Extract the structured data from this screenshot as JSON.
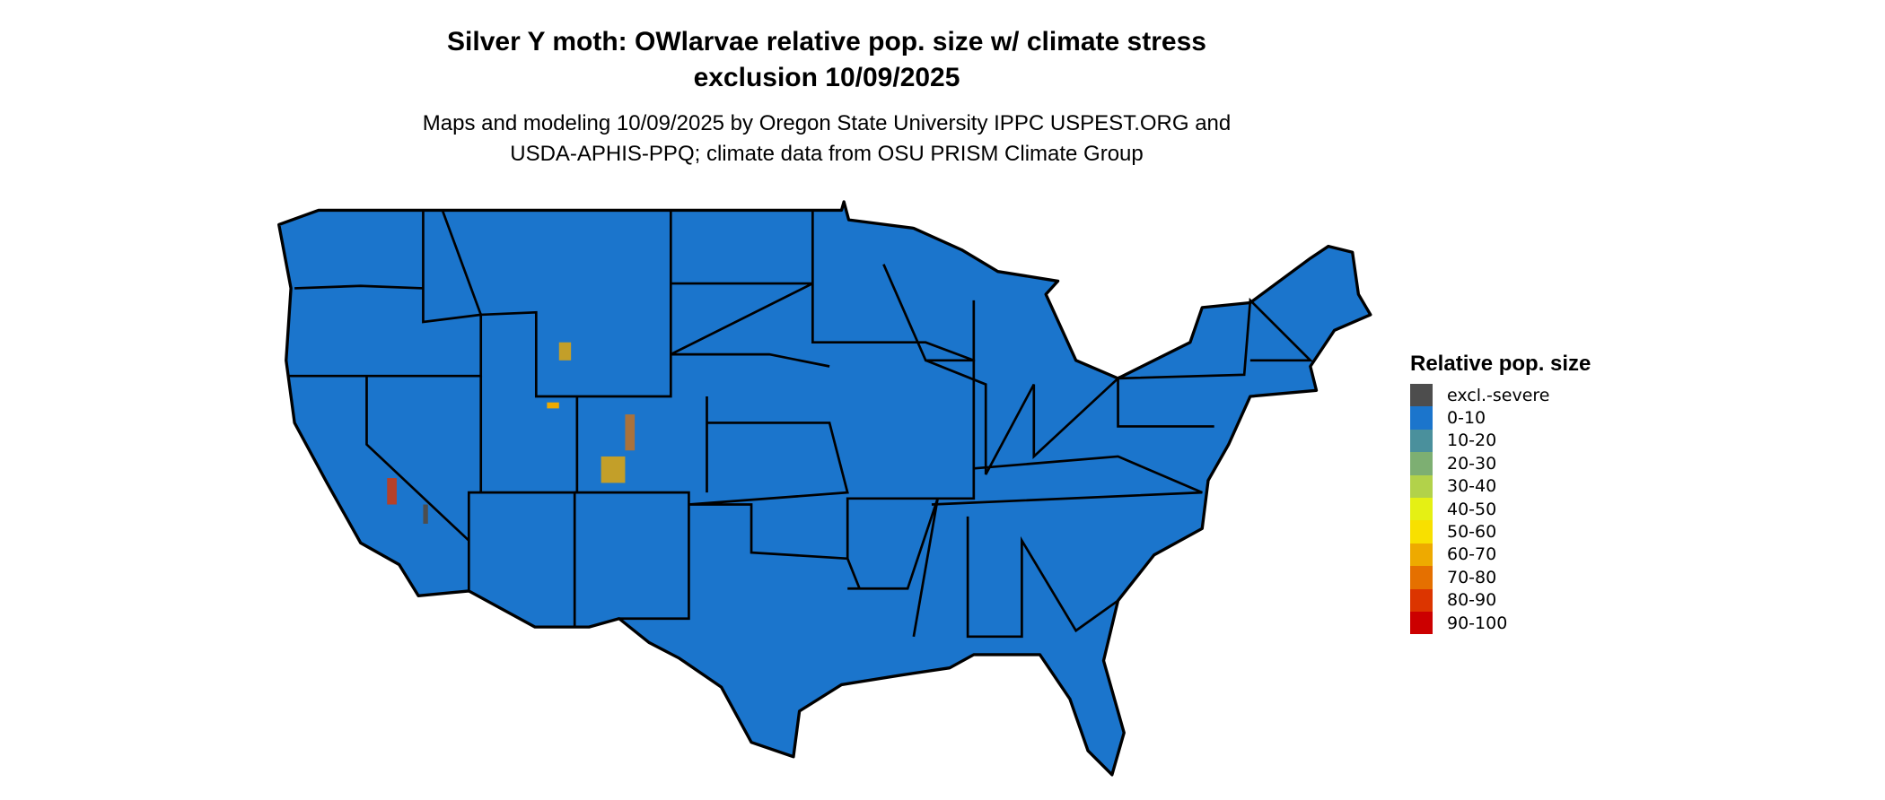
{
  "title": [
    "Silver Y moth: OWlarvae relative pop. size w/ climate stress",
    "exclusion 10/09/2025"
  ],
  "subtitle": [
    "Maps and modeling 10/09/2025 by Oregon State University IPPC USPEST.ORG and",
    "USDA-APHIS-PPQ; climate data from OSU PRISM Climate Group"
  ],
  "map": {
    "region": "Contiguous United States",
    "fill_color": "#1B75CC",
    "border_color": "#000000",
    "dominant_class": "0-10"
  },
  "legend": {
    "title": "Relative pop. size",
    "items": [
      {
        "label": "excl.-severe",
        "color": "#4D4D4D"
      },
      {
        "label": "0-10",
        "color": "#1B75CC"
      },
      {
        "label": "10-20",
        "color": "#4A909C"
      },
      {
        "label": "20-30",
        "color": "#7DAF72"
      },
      {
        "label": "30-40",
        "color": "#B2D24A"
      },
      {
        "label": "40-50",
        "color": "#E5F014"
      },
      {
        "label": "50-60",
        "color": "#F8E000"
      },
      {
        "label": "60-70",
        "color": "#EEAA00"
      },
      {
        "label": "70-80",
        "color": "#E57000"
      },
      {
        "label": "80-90",
        "color": "#DC3500"
      },
      {
        "label": "90-100",
        "color": "#CC0000"
      }
    ]
  }
}
